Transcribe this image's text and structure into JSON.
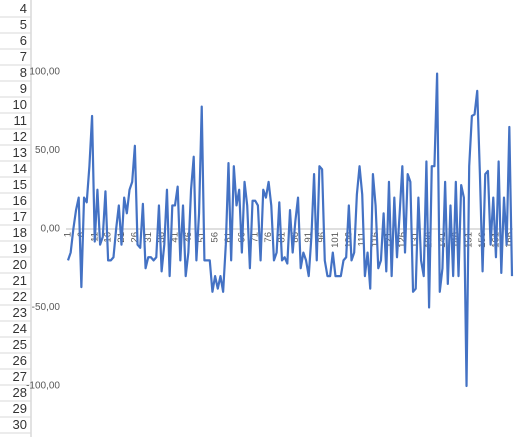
{
  "row_headers": [
    "4",
    "5",
    "6",
    "7",
    "8",
    "9",
    "10",
    "11",
    "12",
    "13",
    "14",
    "15",
    "16",
    "17",
    "18",
    "19",
    "20",
    "21",
    "22",
    "23",
    "24",
    "25",
    "26",
    "27",
    "28",
    "29",
    "30"
  ],
  "chart_data": {
    "type": "line",
    "color": "#4472c4",
    "ylim": [
      -100,
      100
    ],
    "yticks": [
      {
        "value": -100,
        "label": "-100,00"
      },
      {
        "value": -50,
        "label": "-50,00"
      },
      {
        "value": 0,
        "label": "0,00"
      },
      {
        "value": 50,
        "label": "50,00"
      },
      {
        "value": 100,
        "label": "100,00"
      }
    ],
    "categories": [
      "1",
      null,
      null,
      null,
      null,
      "6",
      null,
      null,
      null,
      null,
      "11",
      null,
      null,
      null,
      null,
      "16",
      null,
      null,
      null,
      null,
      "21",
      null,
      null,
      null,
      null,
      "26",
      null,
      null,
      null,
      null,
      "31",
      null,
      null,
      null,
      null,
      "36",
      null,
      null,
      null,
      null,
      "41",
      null,
      null,
      null,
      null,
      "46",
      null,
      null,
      null,
      null,
      "51",
      null,
      null,
      null,
      null,
      "56",
      null,
      null,
      null,
      null,
      "61",
      null,
      null,
      null,
      null,
      "66",
      null,
      null,
      null,
      null,
      "71",
      null,
      null,
      null,
      null,
      "76",
      null,
      null,
      null,
      null,
      "81",
      null,
      null,
      null,
      null,
      "86",
      null,
      null,
      null,
      null,
      "91",
      null,
      null,
      null,
      null,
      "96",
      null,
      null,
      null,
      null,
      "101",
      null,
      null,
      null,
      null,
      "106",
      null,
      null,
      null,
      null,
      "111",
      null,
      null,
      null,
      null,
      "116",
      null,
      null,
      null,
      null,
      "121",
      null,
      null,
      null,
      null,
      "126",
      null,
      null,
      null,
      null,
      "131",
      null,
      null,
      null,
      null,
      "136",
      null,
      null,
      null,
      null,
      "141",
      null,
      null,
      null,
      null,
      "146",
      null,
      null,
      null,
      null,
      "151",
      null,
      null,
      null,
      null,
      "156",
      null,
      null,
      null,
      null,
      "161",
      null,
      null,
      null,
      null,
      "166",
      null
    ],
    "values": [
      -20,
      -15,
      0,
      12,
      20,
      -37,
      20,
      17,
      40,
      72,
      -8,
      25,
      -10,
      -5,
      24,
      -20,
      -20,
      -18,
      0,
      15,
      -10,
      20,
      10,
      25,
      30,
      53,
      -10,
      -12,
      16,
      -25,
      -18,
      -18,
      -20,
      -18,
      15,
      -27,
      -10,
      25,
      -30,
      15,
      15,
      27,
      -20,
      15,
      -30,
      -15,
      25,
      46,
      -20,
      10,
      78,
      -20,
      -20,
      -20,
      -40,
      -30,
      -38,
      -30,
      -40,
      -10,
      42,
      -20,
      40,
      15,
      25,
      -15,
      30,
      15,
      -25,
      18,
      18,
      15,
      -20,
      25,
      20,
      30,
      15,
      -20,
      -15,
      17,
      -20,
      -18,
      -22,
      12,
      -15,
      5,
      20,
      -25,
      -15,
      -20,
      -30,
      -5,
      35,
      -20,
      40,
      38,
      -20,
      -30,
      -30,
      -15,
      -30,
      -30,
      -30,
      -20,
      -18,
      15,
      -20,
      -15,
      22,
      40,
      22,
      -30,
      -15,
      -38,
      35,
      15,
      -25,
      -20,
      10,
      -27,
      30,
      -30,
      20,
      -18,
      10,
      40,
      -15,
      35,
      30,
      -40,
      -38,
      20,
      -20,
      -30,
      43,
      -50,
      40,
      40,
      99,
      -40,
      -25,
      30,
      -35,
      15,
      -30,
      30,
      -30,
      28,
      20,
      -100,
      40,
      72,
      73,
      88,
      35,
      -27,
      35,
      37,
      -10,
      20,
      -18,
      43,
      -28,
      20,
      -10,
      65,
      -30
    ]
  }
}
